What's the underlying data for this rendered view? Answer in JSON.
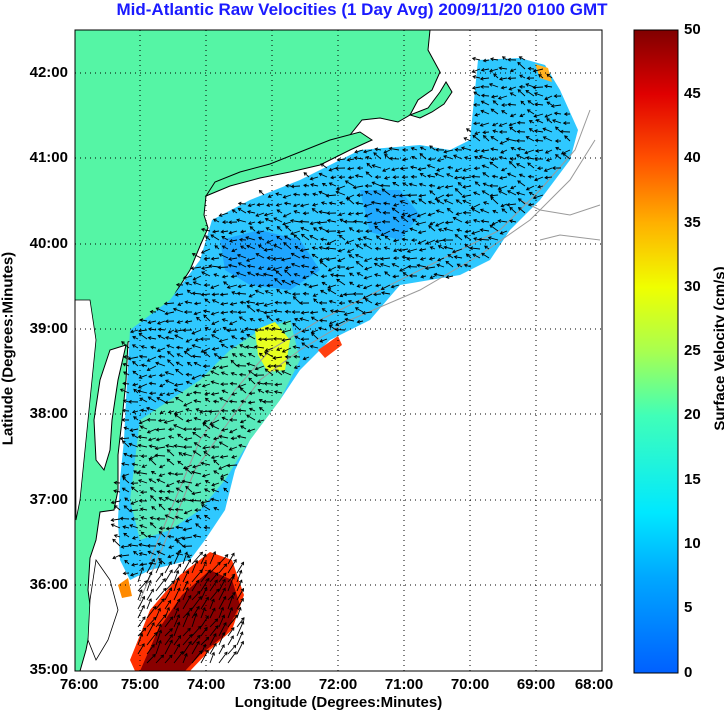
{
  "title": "Mid-Atlantic Raw Velocities (1 Day Avg) 2009/11/20 0100 GMT",
  "map": {
    "x_label": "Longitude (Degrees:Minutes)",
    "y_label": "Latitude (Degrees:Minutes)",
    "x_ticks": [
      "76:00",
      "75:00",
      "74:00",
      "73:00",
      "72:00",
      "71:00",
      "70:00",
      "69:00",
      "68:00"
    ],
    "y_ticks": [
      "42:00",
      "41:00",
      "40:00",
      "39:00",
      "38:00",
      "37:00",
      "36:00",
      "35:00"
    ],
    "lon_range": [
      -76,
      -68
    ],
    "lat_range": [
      35,
      42.5
    ],
    "grid": "dotted",
    "land_color": "#55f5a5",
    "coast_color": "#000000",
    "bathymetry_color": "#9a9a9a"
  },
  "colorbar": {
    "label": "Surface Velocity (cm/s)",
    "ticks": [
      "50",
      "45",
      "40",
      "35",
      "30",
      "25",
      "20",
      "15",
      "10",
      "5",
      "0"
    ],
    "range": [
      0,
      50
    ],
    "colormap": "jet"
  }
}
